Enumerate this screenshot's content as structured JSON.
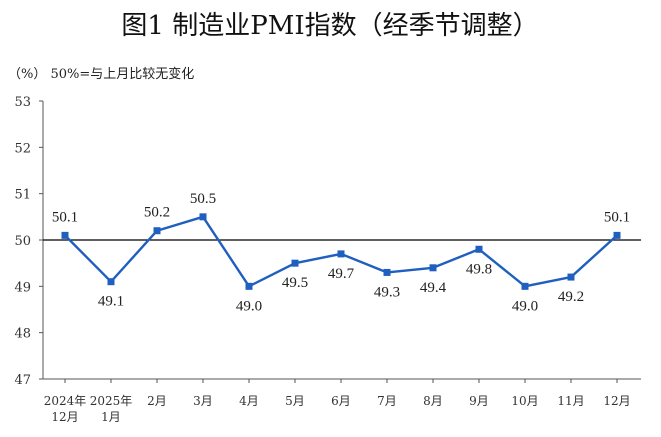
{
  "chart_data": {
    "type": "line",
    "title": "图1  制造业PMI指数（经季节调整）",
    "unit_note": "（%）  50%=与上月比较无变化",
    "categories": [
      [
        "2024年",
        "12月"
      ],
      [
        "2025年",
        "1月"
      ],
      [
        "2月"
      ],
      [
        "3月"
      ],
      [
        "4月"
      ],
      [
        "5月"
      ],
      [
        "6月"
      ],
      [
        "7月"
      ],
      [
        "8月"
      ],
      [
        "9月"
      ],
      [
        "10月"
      ],
      [
        "11月"
      ],
      [
        "12月"
      ]
    ],
    "series": [
      {
        "values": [
          50.1,
          49.1,
          50.2,
          50.5,
          49.0,
          49.5,
          49.7,
          49.3,
          49.4,
          49.8,
          49.0,
          49.2,
          50.1
        ]
      }
    ],
    "data_labels": [
      "50.1",
      "49.1",
      "50.2",
      "50.5",
      "49.0",
      "49.5",
      "49.7",
      "49.3",
      "49.4",
      "49.8",
      "49.0",
      "49.2",
      "50.1"
    ],
    "label_positions": [
      "above",
      "below",
      "above",
      "above",
      "below",
      "below",
      "below",
      "below",
      "below",
      "below",
      "below",
      "below",
      "above"
    ],
    "ylim": [
      47,
      53
    ],
    "yticks": [
      "47",
      "48",
      "49",
      "50",
      "51",
      "52",
      "53"
    ],
    "reference_line": 50,
    "grid": false,
    "colors": {
      "line": "#1f5fbf",
      "marker": "#1f5fbf",
      "axis": "#555555",
      "reference": "#000000"
    }
  }
}
